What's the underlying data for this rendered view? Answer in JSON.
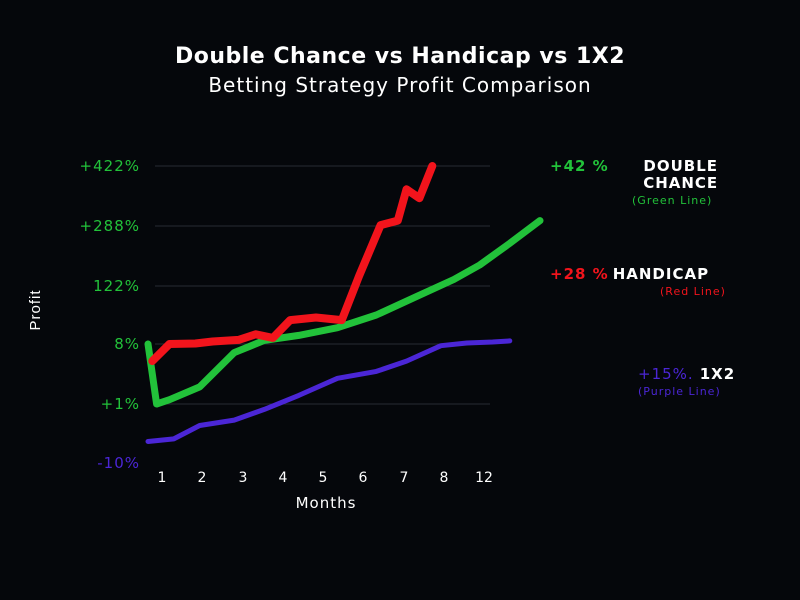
{
  "chart_data": {
    "type": "line",
    "title": "Double Chance vs Handicap vs 1X2",
    "subtitle": "Betting Strategy Profit Comparison",
    "xlabel": "Months",
    "ylabel": "Profit",
    "x_tick_labels": [
      "1",
      "2",
      "3",
      "4",
      "5",
      "6",
      "7",
      "8",
      "12"
    ],
    "y_tick_labels": [
      "-10%",
      "+1%",
      "8%",
      "122%",
      "+288%",
      "+422%"
    ],
    "ylim": [
      -10,
      422
    ],
    "grid": true,
    "legend_placement": "right",
    "series": [
      {
        "name": "DOUBLE CHANCE",
        "legend_value": "+42 %",
        "legend_note": "(Green Line)",
        "color": "#22c23a",
        "x": [
          0.8,
          1.0,
          1.3,
          2.0,
          2.8,
          3.5,
          4.3,
          5.2,
          6.1,
          7.0,
          7.9,
          8.5,
          9.2,
          9.9
        ],
        "y": [
          8,
          1,
          1.5,
          3,
          7,
          15,
          25,
          40,
          65,
          100,
          140,
          180,
          240,
          300
        ]
      },
      {
        "name": "HANDICAP",
        "legend_value": "+28 %",
        "legend_note": "(Red Line)",
        "color": "#f2141c",
        "x": [
          0.9,
          1.3,
          1.9,
          2.3,
          2.9,
          3.3,
          3.7,
          4.1,
          4.7,
          5.3,
          5.7,
          6.2,
          6.6,
          6.8,
          7.1,
          7.4
        ],
        "y": [
          6,
          8,
          9,
          13,
          16,
          27,
          20,
          55,
          60,
          55,
          150,
          290,
          300,
          370,
          350,
          422
        ]
      },
      {
        "name": "1X2",
        "legend_value": "+15%.",
        "legend_note": "(Purple Line)",
        "color": "#4b26d6",
        "x": [
          0.8,
          1.4,
          2.0,
          2.8,
          3.5,
          4.3,
          5.2,
          6.1,
          6.8,
          7.6,
          8.2,
          8.8,
          9.2
        ],
        "y": [
          -6,
          -5.5,
          -3,
          -2,
          0,
          2,
          4,
          4.8,
          6,
          7.8,
          10,
          12,
          14
        ]
      }
    ]
  }
}
